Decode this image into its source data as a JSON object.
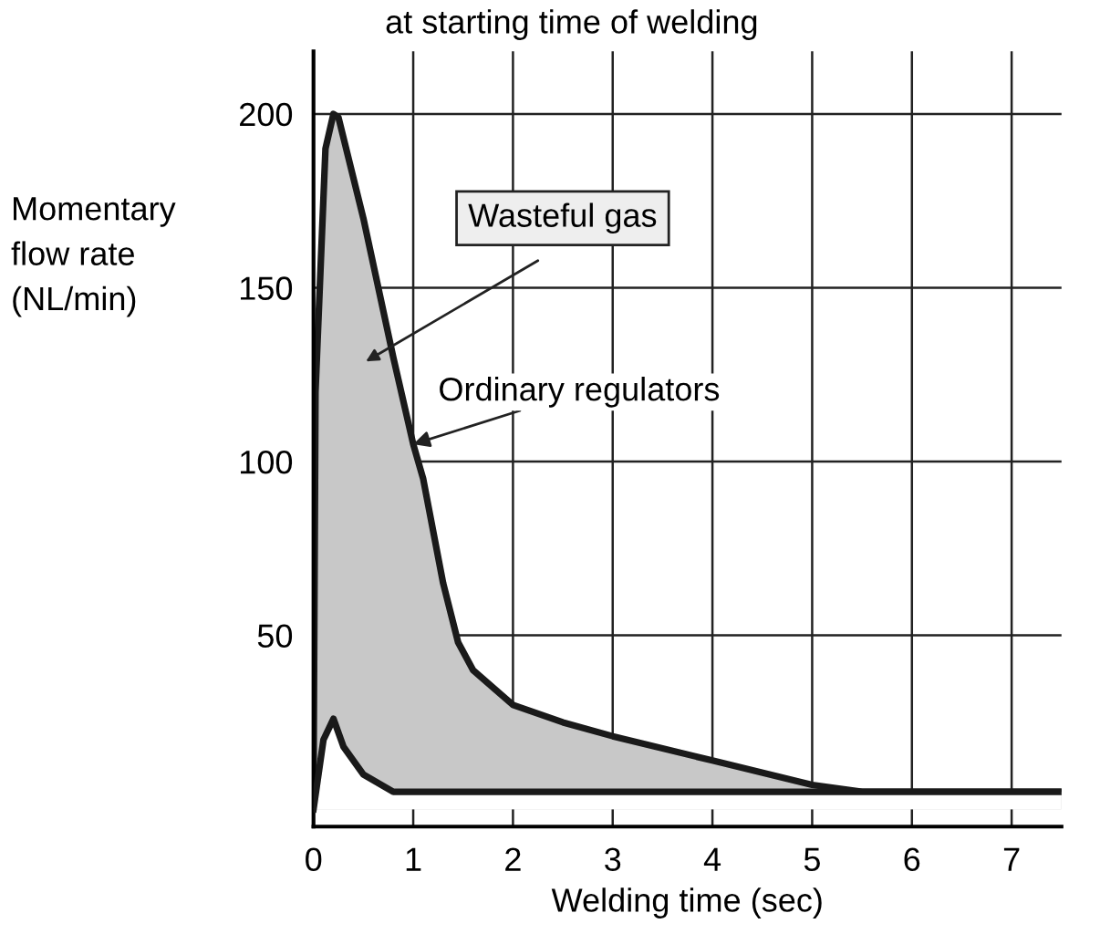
{
  "chart_data": {
    "type": "area",
    "title": "at starting time of welding",
    "xlabel": "Welding time (sec)",
    "ylabel": "Momentary\nflow rate\n(NL/min)",
    "xlim": [
      0,
      7.5
    ],
    "ylim": [
      -5,
      218
    ],
    "xticks": [
      0,
      1,
      2,
      3,
      4,
      5,
      6,
      7
    ],
    "yticks": [
      50,
      100,
      150,
      200
    ],
    "grid": true,
    "series": [
      {
        "color": "#c8c8c8",
        "x": [
          0,
          0.02,
          0.12,
          0.2,
          0.25,
          0.5,
          0.8,
          1.0,
          1.1,
          1.3,
          1.45,
          1.6,
          2.0,
          2.5,
          3,
          4,
          5,
          5.5,
          7.5
        ],
        "values": [
          5,
          120,
          190,
          200,
          199,
          170,
          130,
          105,
          95,
          65,
          48,
          40,
          30,
          25,
          21,
          14,
          7,
          5,
          5
        ]
      },
      {
        "color": "#ffffff",
        "x": [
          0,
          0.1,
          0.2,
          0.3,
          0.5,
          0.8,
          7.5
        ],
        "values": [
          0,
          20,
          26,
          18,
          10,
          5,
          5
        ]
      }
    ],
    "annotations": [
      "Wasteful gas",
      {
        "text": "Ordinary regulators",
        "x": 1.0,
        "y": 105
      }
    ]
  }
}
